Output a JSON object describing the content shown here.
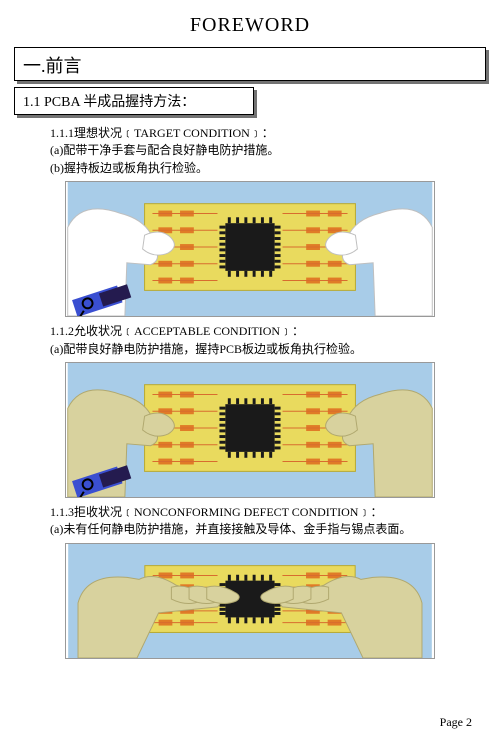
{
  "title": "FOREWORD",
  "h1": "一.前言",
  "h2": "1.1 PCBA 半成品握持方法：",
  "sec1": {
    "head": "1.1.1理想状况﹝TARGET CONDITION﹞：",
    "a": "(a)配带干净手套与配合良好静电防护措施。",
    "b": "(b)握持板边或板角执行检验。"
  },
  "sec2": {
    "head": "1.1.2允收状况﹝ACCEPTABLE CONDITION﹞：",
    "a": "(a)配带良好静电防护措施，握持PCB板边或板角执行检验。"
  },
  "sec3": {
    "head": "1.1.3拒收状况﹝NONCONFORMING DEFECT CONDITION﹞：",
    "a": "(a)未有任何静电防护措施，并直接接触及导体、金手指与锡点表面。"
  },
  "pageNum": "Page  2",
  "colors": {
    "panel_bg": "#a8cce8",
    "pcb": "#e9da5e",
    "pcb_stroke": "#b9a92e",
    "chip": "#1a1a1a",
    "pad": "#e07b27",
    "trace": "#d86c2e",
    "glove": "#ffffff",
    "skin": "#d8d29e",
    "wrist": "#3a4fd1",
    "wrist2": "#241b4f"
  }
}
